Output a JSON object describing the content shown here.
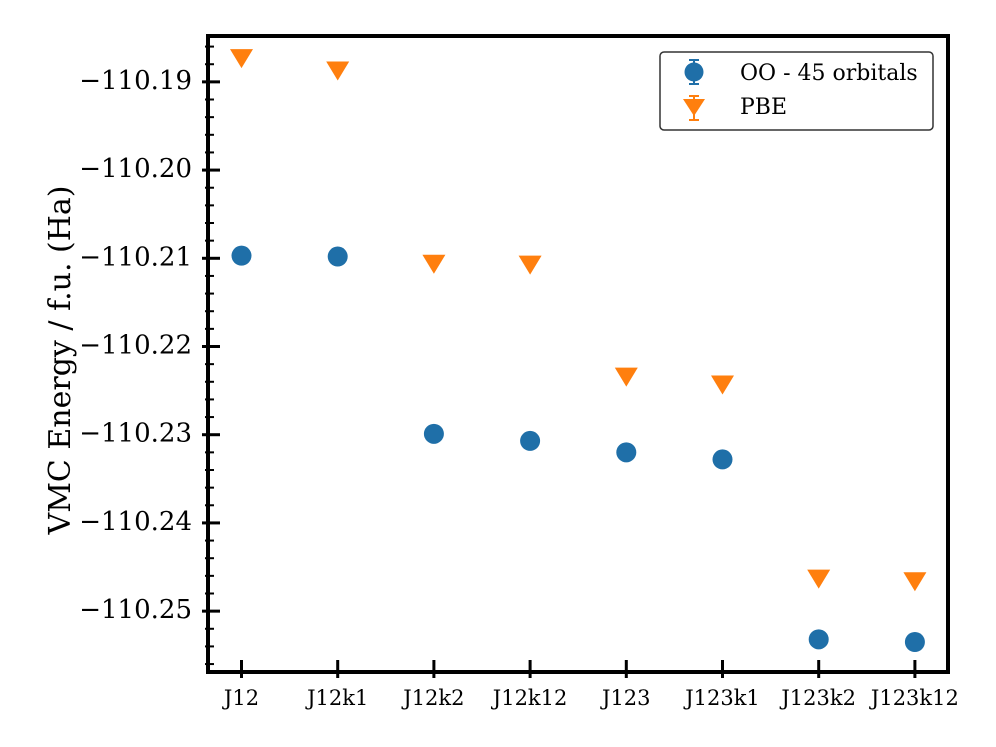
{
  "chart_data": {
    "type": "scatter",
    "title": "",
    "xlabel": "",
    "ylabel": "VMC Energy / f.u. (Ha)",
    "categories": [
      "J12",
      "J12k1",
      "J12k2",
      "J12k12",
      "J123",
      "J123k1",
      "J123k2",
      "J123k12"
    ],
    "yticks": [
      -110.19,
      -110.2,
      -110.21,
      -110.22,
      -110.23,
      -110.24,
      -110.25
    ],
    "ytick_labels": [
      "−110.19",
      "−110.20",
      "−110.21",
      "−110.22",
      "−110.23",
      "−110.24",
      "−110.25"
    ],
    "ylim": [
      -110.2569,
      -110.1848
    ],
    "grid": false,
    "legend_position": "top-right",
    "series": [
      {
        "name": "OO - 45 orbitals",
        "marker": "circle",
        "color": "#1f6fa8",
        "values": [
          -110.2097,
          -110.2098,
          -110.2299,
          -110.2307,
          -110.232,
          -110.2328,
          -110.2532,
          -110.2535
        ]
      },
      {
        "name": "PBE",
        "marker": "triangle-down",
        "color": "#ff7f0e",
        "values": [
          -110.1872,
          -110.1886,
          -110.2105,
          -110.2106,
          -110.2233,
          -110.2242,
          -110.2462,
          -110.2465
        ]
      }
    ]
  }
}
